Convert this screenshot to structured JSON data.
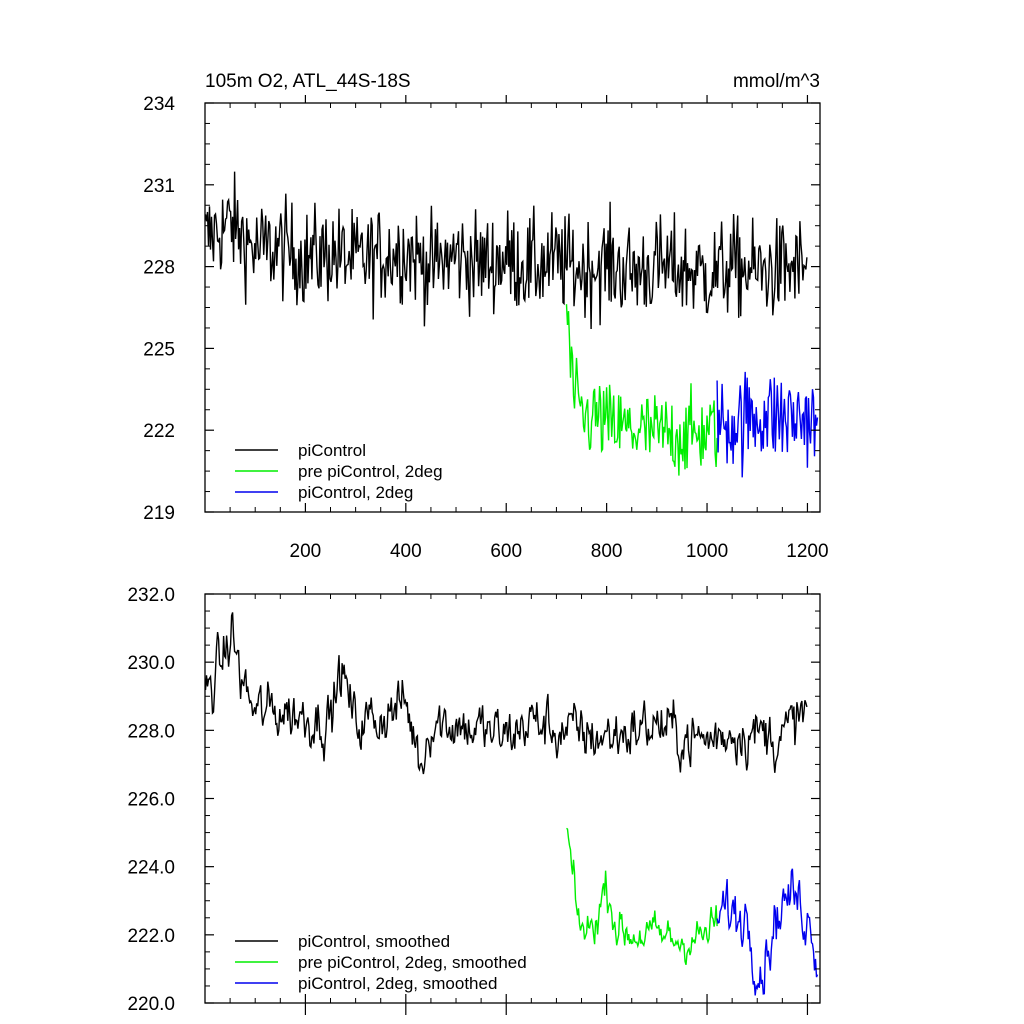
{
  "chart_data": [
    {
      "type": "line",
      "title": "105m O2, ATL_44S-18S",
      "units": "mmol/m^3",
      "xlim": [
        0,
        1225
      ],
      "ylim": [
        219,
        234
      ],
      "x_ticks": [
        200,
        400,
        600,
        800,
        1000,
        1200
      ],
      "y_ticks": [
        219,
        222,
        225,
        228,
        231,
        234
      ],
      "y_tick_labels": [
        "219",
        "222",
        "225",
        "228",
        "231",
        "234"
      ],
      "legend_position": "bottom-left",
      "series": [
        {
          "name": "piControl",
          "color": "#000000",
          "x": [
            1,
            50,
            100,
            150,
            200,
            250,
            300,
            350,
            400,
            450,
            500,
            550,
            600,
            650,
            700,
            750,
            800,
            850,
            900,
            950,
            1000,
            1050,
            1100,
            1150,
            1200
          ],
          "y": [
            229.0,
            229.6,
            228.6,
            228.7,
            228.3,
            228.5,
            228.2,
            228.4,
            228.6,
            228.0,
            228.4,
            228.1,
            228.3,
            228.0,
            228.2,
            227.9,
            228.1,
            227.8,
            228.0,
            227.9,
            227.7,
            228.0,
            227.8,
            227.9,
            228.0
          ]
        },
        {
          "name": "pre piControl, 2deg",
          "color": "#00ee00",
          "x": [
            720,
            730,
            740,
            760,
            780,
            800,
            850,
            900,
            950,
            1000,
            1020
          ],
          "y": [
            226.6,
            224.0,
            222.8,
            222.4,
            222.5,
            222.2,
            222.0,
            221.9,
            221.8,
            221.9,
            222.1
          ]
        },
        {
          "name": "piControl, 2deg",
          "color": "#0000ee",
          "x": [
            1020,
            1050,
            1080,
            1110,
            1140,
            1170,
            1200,
            1220
          ],
          "y": [
            222.2,
            222.3,
            222.4,
            222.6,
            222.5,
            222.4,
            222.5,
            222.0
          ]
        }
      ]
    },
    {
      "type": "line",
      "title": "",
      "xlim": [
        0,
        1225
      ],
      "ylim": [
        220.0,
        232.0
      ],
      "x_ticks": [
        200,
        400,
        600,
        800,
        1000,
        1200
      ],
      "y_ticks": [
        220.0,
        222.0,
        224.0,
        226.0,
        228.0,
        230.0,
        232.0
      ],
      "y_tick_labels": [
        "220.0",
        "222.0",
        "224.0",
        "226.0",
        "228.0",
        "230.0",
        "232.0"
      ],
      "legend_position": "bottom-left",
      "series": [
        {
          "name": "piControl, smoothed",
          "color": "#000000",
          "x": [
            1,
            20,
            40,
            55,
            70,
            100,
            150,
            200,
            250,
            270,
            300,
            350,
            400,
            430,
            450,
            500,
            550,
            600,
            650,
            700,
            750,
            800,
            850,
            900,
            950,
            1000,
            1050,
            1100,
            1150,
            1200
          ],
          "y": [
            229.0,
            229.6,
            230.2,
            230.9,
            229.6,
            228.5,
            228.6,
            228.4,
            228.3,
            229.8,
            228.2,
            228.4,
            228.8,
            227.0,
            228.3,
            228.2,
            228.0,
            227.8,
            228.3,
            228.0,
            227.9,
            227.8,
            228.0,
            228.2,
            227.8,
            227.7,
            228.0,
            227.9,
            227.8,
            228.6
          ]
        },
        {
          "name": "pre piControl, 2deg, smoothed",
          "color": "#00ee00",
          "x": [
            720,
            730,
            740,
            760,
            780,
            800,
            820,
            850,
            900,
            950,
            1000,
            1020
          ],
          "y": [
            225.1,
            224.0,
            222.6,
            222.0,
            222.5,
            223.5,
            222.2,
            222.0,
            222.0,
            221.8,
            222.0,
            222.4
          ]
        },
        {
          "name": "piControl, 2deg, smoothed",
          "color": "#0000ee",
          "x": [
            1020,
            1040,
            1060,
            1080,
            1095,
            1110,
            1130,
            1150,
            1170,
            1190,
            1210,
            1220
          ],
          "y": [
            222.3,
            222.8,
            222.5,
            222.6,
            221.5,
            220.9,
            222.2,
            222.9,
            223.2,
            222.8,
            222.2,
            221.4
          ]
        }
      ]
    }
  ]
}
